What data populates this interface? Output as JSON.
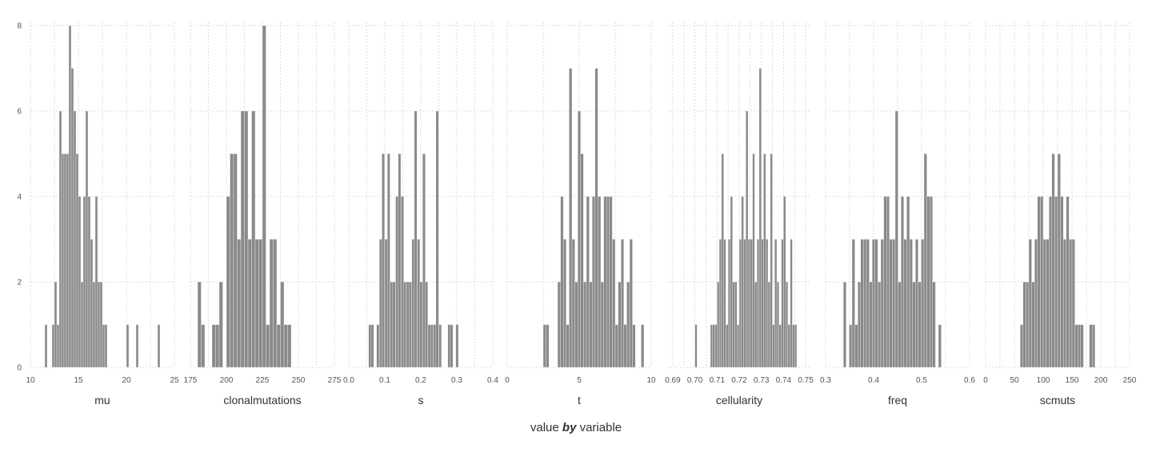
{
  "chart_data": {
    "type": "bar",
    "title": "",
    "xlabel": {
      "left": "value",
      "keyword": "by",
      "right": "variable"
    },
    "ylabel": "",
    "ylim": [
      0,
      8
    ],
    "y_ticks": [
      "0",
      "2",
      "4",
      "6",
      "8"
    ],
    "y_tick_values": [
      0,
      2,
      4,
      6,
      8
    ],
    "grid": true,
    "bar_color": "#8a8a8a",
    "facets": [
      {
        "name": "mu",
        "xlim": [
          10,
          25
        ],
        "x_ticks": [
          "10",
          "15",
          "20",
          "25"
        ],
        "x_tick_values": [
          10,
          15,
          20,
          25
        ],
        "bin_width": 0.25,
        "bins": [
          [
            11.5,
            1
          ],
          [
            12.25,
            1
          ],
          [
            12.5,
            2
          ],
          [
            12.75,
            1
          ],
          [
            13.0,
            6
          ],
          [
            13.25,
            5
          ],
          [
            13.5,
            5
          ],
          [
            13.75,
            5
          ],
          [
            14.0,
            8
          ],
          [
            14.25,
            7
          ],
          [
            14.5,
            6
          ],
          [
            14.75,
            5
          ],
          [
            15.0,
            4
          ],
          [
            15.25,
            2
          ],
          [
            15.5,
            4
          ],
          [
            15.75,
            6
          ],
          [
            16.0,
            4
          ],
          [
            16.25,
            3
          ],
          [
            16.5,
            2
          ],
          [
            16.75,
            4
          ],
          [
            17.0,
            2
          ],
          [
            17.25,
            2
          ],
          [
            17.5,
            1
          ],
          [
            17.75,
            1
          ],
          [
            20.0,
            1
          ],
          [
            21.0,
            1
          ],
          [
            23.25,
            1
          ]
        ]
      },
      {
        "name": "clonalmutations",
        "xlim": [
          175,
          275
        ],
        "x_ticks": [
          "175",
          "200",
          "225",
          "250",
          "275"
        ],
        "x_tick_values": [
          175,
          200,
          225,
          250,
          275
        ],
        "bin_width": 2.5,
        "bins": [
          [
            180,
            2
          ],
          [
            182.5,
            1
          ],
          [
            190,
            1
          ],
          [
            192.5,
            1
          ],
          [
            195,
            2
          ],
          [
            200,
            4
          ],
          [
            202.5,
            5
          ],
          [
            205,
            5
          ],
          [
            207.5,
            3
          ],
          [
            210,
            6
          ],
          [
            212.5,
            6
          ],
          [
            215,
            3
          ],
          [
            217.5,
            6
          ],
          [
            220,
            3
          ],
          [
            222.5,
            3
          ],
          [
            225,
            8
          ],
          [
            227.5,
            1
          ],
          [
            230,
            3
          ],
          [
            232.5,
            3
          ],
          [
            235,
            1
          ],
          [
            237.5,
            2
          ],
          [
            240,
            1
          ],
          [
            242.5,
            1
          ]
        ]
      },
      {
        "name": "s",
        "xlim": [
          0.0,
          0.4
        ],
        "x_ticks": [
          "0.0",
          "0.1",
          "0.2",
          "0.3",
          "0.4"
        ],
        "x_tick_values": [
          0.0,
          0.1,
          0.2,
          0.3,
          0.4
        ],
        "bin_width": 0.0075,
        "bins": [
          [
            0.055,
            1
          ],
          [
            0.062,
            1
          ],
          [
            0.077,
            1
          ],
          [
            0.085,
            3
          ],
          [
            0.092,
            5
          ],
          [
            0.1,
            3
          ],
          [
            0.107,
            5
          ],
          [
            0.115,
            2
          ],
          [
            0.122,
            2
          ],
          [
            0.13,
            4
          ],
          [
            0.137,
            5
          ],
          [
            0.145,
            4
          ],
          [
            0.152,
            2
          ],
          [
            0.16,
            2
          ],
          [
            0.167,
            2
          ],
          [
            0.175,
            3
          ],
          [
            0.182,
            6
          ],
          [
            0.19,
            3
          ],
          [
            0.197,
            2
          ],
          [
            0.205,
            5
          ],
          [
            0.212,
            2
          ],
          [
            0.22,
            1
          ],
          [
            0.227,
            1
          ],
          [
            0.235,
            1
          ],
          [
            0.242,
            6
          ],
          [
            0.25,
            1
          ],
          [
            0.275,
            1
          ],
          [
            0.282,
            1
          ],
          [
            0.297,
            1
          ]
        ]
      },
      {
        "name": "t",
        "xlim": [
          0,
          10
        ],
        "x_ticks": [
          "0",
          "5",
          "10"
        ],
        "x_tick_values": [
          0,
          5,
          10
        ],
        "bin_width": 0.2,
        "bins": [
          [
            2.5,
            1
          ],
          [
            2.7,
            1
          ],
          [
            3.5,
            2
          ],
          [
            3.7,
            4
          ],
          [
            3.9,
            3
          ],
          [
            4.1,
            1
          ],
          [
            4.3,
            7
          ],
          [
            4.5,
            3
          ],
          [
            4.7,
            2
          ],
          [
            4.9,
            6
          ],
          [
            5.1,
            5
          ],
          [
            5.3,
            2
          ],
          [
            5.5,
            4
          ],
          [
            5.7,
            2
          ],
          [
            5.9,
            4
          ],
          [
            6.1,
            7
          ],
          [
            6.3,
            4
          ],
          [
            6.5,
            2
          ],
          [
            6.7,
            4
          ],
          [
            6.9,
            4
          ],
          [
            7.1,
            4
          ],
          [
            7.3,
            3
          ],
          [
            7.5,
            1
          ],
          [
            7.7,
            2
          ],
          [
            7.9,
            3
          ],
          [
            8.1,
            1
          ],
          [
            8.3,
            2
          ],
          [
            8.5,
            3
          ],
          [
            8.7,
            1
          ],
          [
            9.3,
            1
          ]
        ]
      },
      {
        "name": "cellularity",
        "xlim": [
          0.6875,
          0.7525
        ],
        "x_ticks": [
          "0.69",
          "0.70",
          "0.71",
          "0.72",
          "0.73",
          "0.74",
          "0.75"
        ],
        "x_tick_values": [
          0.69,
          0.7,
          0.71,
          0.72,
          0.73,
          0.74,
          0.75
        ],
        "bin_width": 0.001,
        "bins": [
          [
            0.7,
            1
          ],
          [
            0.707,
            1
          ],
          [
            0.708,
            1
          ],
          [
            0.709,
            1
          ],
          [
            0.71,
            2
          ],
          [
            0.711,
            3
          ],
          [
            0.712,
            5
          ],
          [
            0.713,
            3
          ],
          [
            0.714,
            1
          ],
          [
            0.715,
            3
          ],
          [
            0.716,
            4
          ],
          [
            0.717,
            2
          ],
          [
            0.718,
            2
          ],
          [
            0.719,
            1
          ],
          [
            0.72,
            3
          ],
          [
            0.721,
            4
          ],
          [
            0.722,
            3
          ],
          [
            0.723,
            6
          ],
          [
            0.724,
            3
          ],
          [
            0.725,
            3
          ],
          [
            0.726,
            5
          ],
          [
            0.727,
            2
          ],
          [
            0.728,
            3
          ],
          [
            0.729,
            7
          ],
          [
            0.73,
            3
          ],
          [
            0.731,
            5
          ],
          [
            0.732,
            3
          ],
          [
            0.733,
            2
          ],
          [
            0.734,
            5
          ],
          [
            0.735,
            1
          ],
          [
            0.736,
            3
          ],
          [
            0.737,
            2
          ],
          [
            0.738,
            1
          ],
          [
            0.739,
            3
          ],
          [
            0.74,
            4
          ],
          [
            0.741,
            2
          ],
          [
            0.742,
            1
          ],
          [
            0.743,
            3
          ],
          [
            0.744,
            1
          ],
          [
            0.745,
            1
          ]
        ]
      },
      {
        "name": "freq",
        "xlim": [
          0.3,
          0.6
        ],
        "x_ticks": [
          "0.3",
          "0.4",
          "0.5",
          "0.6"
        ],
        "x_tick_values": [
          0.3,
          0.4,
          0.5,
          0.6
        ],
        "bin_width": 0.006,
        "bins": [
          [
            0.337,
            2
          ],
          [
            0.349,
            1
          ],
          [
            0.355,
            3
          ],
          [
            0.361,
            1
          ],
          [
            0.367,
            2
          ],
          [
            0.373,
            3
          ],
          [
            0.379,
            3
          ],
          [
            0.385,
            3
          ],
          [
            0.391,
            2
          ],
          [
            0.397,
            3
          ],
          [
            0.403,
            3
          ],
          [
            0.409,
            2
          ],
          [
            0.415,
            3
          ],
          [
            0.421,
            4
          ],
          [
            0.427,
            4
          ],
          [
            0.433,
            3
          ],
          [
            0.439,
            3
          ],
          [
            0.445,
            6
          ],
          [
            0.451,
            2
          ],
          [
            0.457,
            4
          ],
          [
            0.463,
            3
          ],
          [
            0.469,
            4
          ],
          [
            0.475,
            3
          ],
          [
            0.481,
            2
          ],
          [
            0.487,
            3
          ],
          [
            0.493,
            2
          ],
          [
            0.499,
            3
          ],
          [
            0.505,
            5
          ],
          [
            0.511,
            4
          ],
          [
            0.517,
            4
          ],
          [
            0.523,
            2
          ],
          [
            0.535,
            1
          ]
        ]
      },
      {
        "name": "scmuts",
        "xlim": [
          0,
          250
        ],
        "x_ticks": [
          "0",
          "50",
          "100",
          "150",
          "200",
          "250"
        ],
        "x_tick_values": [
          0,
          50,
          100,
          150,
          200,
          250
        ],
        "bin_width": 5,
        "bins": [
          [
            60,
            1
          ],
          [
            65,
            2
          ],
          [
            70,
            2
          ],
          [
            75,
            3
          ],
          [
            80,
            2
          ],
          [
            85,
            3
          ],
          [
            90,
            4
          ],
          [
            95,
            4
          ],
          [
            100,
            3
          ],
          [
            105,
            3
          ],
          [
            110,
            4
          ],
          [
            115,
            5
          ],
          [
            120,
            4
          ],
          [
            125,
            5
          ],
          [
            130,
            4
          ],
          [
            135,
            3
          ],
          [
            140,
            4
          ],
          [
            145,
            3
          ],
          [
            150,
            3
          ],
          [
            155,
            1
          ],
          [
            160,
            1
          ],
          [
            165,
            1
          ],
          [
            180,
            1
          ],
          [
            185,
            1
          ]
        ]
      }
    ]
  }
}
